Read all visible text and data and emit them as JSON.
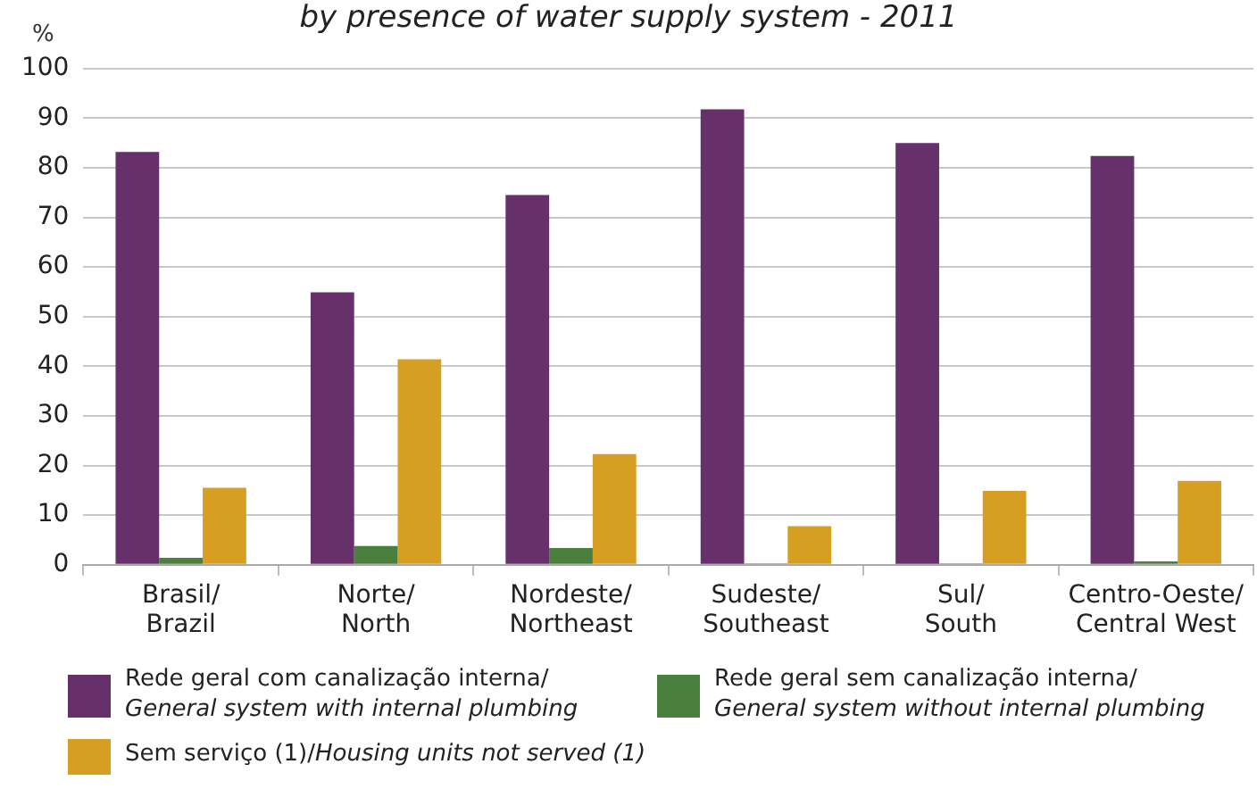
{
  "chart_data": {
    "type": "bar",
    "title": "by presence of water supply system - 2011",
    "ylabel": "%",
    "categories": [
      "Brasil/\nBrazil",
      "Norte/\nNorth",
      "Nordeste/\nNortheast",
      "Sudeste/\nSoutheast",
      "Sul/\nSouth",
      "Centro-Oeste/\nCentral West"
    ],
    "series": [
      {
        "name": "Rede geral com canalização interna/\nGeneral system with internal plumbing",
        "color": "#66306b",
        "values": [
          83.2,
          54.9,
          74.5,
          91.8,
          85.0,
          82.4
        ]
      },
      {
        "name": "Rede geral sem canalização interna/\nGeneral system without internal plumbing",
        "color": "#4a7f3d",
        "values": [
          1.4,
          3.8,
          3.4,
          0.3,
          0.3,
          0.7
        ]
      },
      {
        "name": "Sem serviço (1)/Housing units not served (1)",
        "color": "#d69f22",
        "values": [
          15.5,
          41.4,
          22.3,
          7.8,
          14.9,
          16.9
        ]
      }
    ],
    "ylim": [
      0,
      100
    ],
    "yticks": [
      0,
      10,
      20,
      30,
      40,
      50,
      60,
      70,
      80,
      90,
      100
    ],
    "grid": "y",
    "legend": "bottom"
  }
}
